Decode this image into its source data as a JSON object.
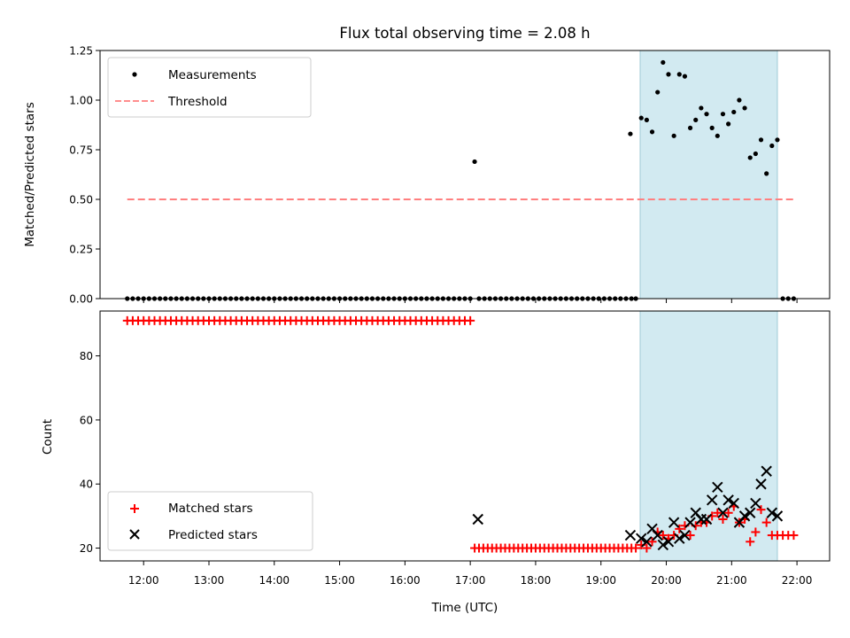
{
  "chart_data": [
    {
      "type": "scatter",
      "title": "Flux total observing time = 2.08 h",
      "xlabel": "",
      "ylabel": "Matched/Predicted stars",
      "xlim": [
        "11:20",
        "22:30"
      ],
      "ylim": [
        0,
        1.25
      ],
      "yticks": [
        0.0,
        0.25,
        0.5,
        0.75,
        1.0,
        1.25
      ],
      "ytick_labels": [
        "0.00",
        "0.25",
        "0.50",
        "0.75",
        "1.00",
        "1.25"
      ],
      "grid": false,
      "legend_position": "top-left",
      "shaded_interval": {
        "from": "19:36",
        "to": "21:42",
        "color": "#add8e6"
      },
      "series": [
        {
          "name": "Measurements",
          "marker": "dot",
          "color": "#000000",
          "zero_run": {
            "from": "11:45",
            "to": "17:00",
            "step_minutes": 5,
            "value": 0
          },
          "zero_run_2": {
            "from": "17:08",
            "to": "19:28",
            "step_minutes": 5,
            "value": 0
          },
          "points": [
            [
              "17:04",
              0.69
            ],
            [
              "19:27",
              0.83
            ],
            [
              "19:32",
              0.0
            ],
            [
              "19:37",
              0.91
            ],
            [
              "19:42",
              0.9
            ],
            [
              "19:47",
              0.84
            ],
            [
              "19:52",
              1.04
            ],
            [
              "19:57",
              1.19
            ],
            [
              "20:02",
              1.13
            ],
            [
              "20:07",
              0.82
            ],
            [
              "20:12",
              1.13
            ],
            [
              "20:17",
              1.12
            ],
            [
              "20:22",
              0.86
            ],
            [
              "20:27",
              0.9
            ],
            [
              "20:32",
              0.96
            ],
            [
              "20:37",
              0.93
            ],
            [
              "20:42",
              0.86
            ],
            [
              "20:47",
              0.82
            ],
            [
              "20:52",
              0.93
            ],
            [
              "20:57",
              0.88
            ],
            [
              "21:02",
              0.94
            ],
            [
              "21:07",
              1.0
            ],
            [
              "21:12",
              0.96
            ],
            [
              "21:17",
              0.71
            ],
            [
              "21:22",
              0.73
            ],
            [
              "21:27",
              0.8
            ],
            [
              "21:32",
              0.63
            ],
            [
              "21:37",
              0.77
            ],
            [
              "21:42",
              0.8
            ],
            [
              "21:47",
              0.0
            ],
            [
              "21:52",
              0.0
            ],
            [
              "21:57",
              0.0
            ]
          ]
        },
        {
          "name": "Threshold",
          "marker": "dashed-line",
          "color": "#ff7f7f",
          "x": [
            "11:45",
            "21:57"
          ],
          "value": 0.5
        }
      ]
    },
    {
      "type": "scatter",
      "title": "",
      "xlabel": "Time (UTC)",
      "ylabel": "Count",
      "xlim": [
        "11:20",
        "22:30"
      ],
      "ylim": [
        16,
        94
      ],
      "yticks": [
        20,
        40,
        60,
        80
      ],
      "ytick_labels": [
        "20",
        "40",
        "60",
        "80"
      ],
      "xticks": [
        "12:00",
        "13:00",
        "14:00",
        "15:00",
        "16:00",
        "17:00",
        "18:00",
        "19:00",
        "20:00",
        "21:00",
        "22:00"
      ],
      "grid": false,
      "legend_position": "bottom-left",
      "shaded_interval": {
        "from": "19:36",
        "to": "21:42",
        "color": "#add8e6"
      },
      "series": [
        {
          "name": "Matched stars",
          "marker": "plus",
          "color": "#ff0000",
          "constant_run_1": {
            "from": "11:45",
            "to": "17:00",
            "step_minutes": 5,
            "value": 91
          },
          "constant_run_2": {
            "from": "17:04",
            "to": "19:32",
            "step_minutes": 4,
            "value": 20
          },
          "points": [
            [
              "19:37",
              21
            ],
            [
              "19:42",
              20
            ],
            [
              "19:47",
              22
            ],
            [
              "19:52",
              25
            ],
            [
              "19:57",
              24
            ],
            [
              "20:02",
              23
            ],
            [
              "20:07",
              24
            ],
            [
              "20:12",
              26
            ],
            [
              "20:17",
              27
            ],
            [
              "20:22",
              24
            ],
            [
              "20:27",
              27
            ],
            [
              "20:32",
              28
            ],
            [
              "20:37",
              28
            ],
            [
              "20:42",
              30
            ],
            [
              "20:47",
              31
            ],
            [
              "20:52",
              29
            ],
            [
              "20:57",
              31
            ],
            [
              "21:02",
              33
            ],
            [
              "21:07",
              28
            ],
            [
              "21:12",
              29
            ],
            [
              "21:17",
              22
            ],
            [
              "21:22",
              25
            ],
            [
              "21:27",
              32
            ],
            [
              "21:32",
              28
            ],
            [
              "21:37",
              24
            ],
            [
              "21:42",
              24
            ],
            [
              "21:47",
              24
            ],
            [
              "21:52",
              24
            ],
            [
              "21:57",
              24
            ]
          ]
        },
        {
          "name": "Predicted stars",
          "marker": "x",
          "color": "#000000",
          "points": [
            [
              "17:07",
              29
            ],
            [
              "19:27",
              24
            ],
            [
              "19:37",
              23
            ],
            [
              "19:42",
              22
            ],
            [
              "19:47",
              26
            ],
            [
              "19:52",
              24
            ],
            [
              "19:57",
              21
            ],
            [
              "20:02",
              22
            ],
            [
              "20:07",
              28
            ],
            [
              "20:12",
              23
            ],
            [
              "20:17",
              24
            ],
            [
              "20:22",
              28
            ],
            [
              "20:27",
              31
            ],
            [
              "20:32",
              29
            ],
            [
              "20:37",
              29
            ],
            [
              "20:42",
              35
            ],
            [
              "20:47",
              39
            ],
            [
              "20:52",
              31
            ],
            [
              "20:57",
              35
            ],
            [
              "21:02",
              34
            ],
            [
              "21:07",
              28
            ],
            [
              "21:12",
              30
            ],
            [
              "21:17",
              31
            ],
            [
              "21:22",
              34
            ],
            [
              "21:27",
              40
            ],
            [
              "21:32",
              44
            ],
            [
              "21:37",
              31
            ],
            [
              "21:42",
              30
            ]
          ]
        }
      ]
    }
  ]
}
